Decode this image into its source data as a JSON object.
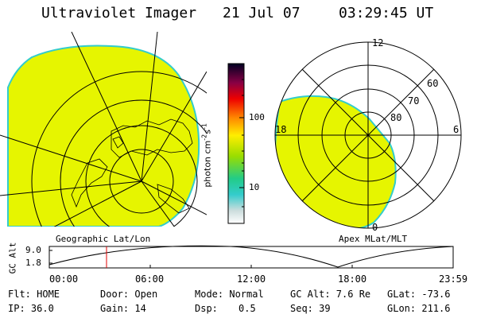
{
  "header": {
    "instrument": "Ultraviolet Imager",
    "date": "21 Jul 07",
    "time": "03:29:45 UT"
  },
  "colorbar": {
    "unit_label": "photon cm",
    "unit_exp1": "-2",
    "unit_mid": "s",
    "unit_exp2": "-1",
    "ticks": [
      "100",
      "10"
    ]
  },
  "left_panel": {
    "caption": "Geographic Lat/Lon"
  },
  "right_panel": {
    "caption": "Apex MLat/MLT",
    "mlt_labels": [
      "12",
      "18",
      "6",
      "0"
    ],
    "lat_labels": [
      "60",
      "70",
      "80"
    ]
  },
  "timeline": {
    "ylabel": "GC Alt",
    "yticks": [
      "9.0",
      "1.8"
    ],
    "xticks": [
      "00:00",
      "06:00",
      "12:00",
      "18:00",
      "23:59"
    ]
  },
  "status": {
    "flt": "Flt: HOME",
    "door": "Door: Open",
    "mode": "Mode: Normal",
    "gc_alt": "GC Alt: 7.6 Re",
    "glat": "GLat: -73.6",
    "ip": "IP: 36.0",
    "gain": "Gain: 14",
    "dsp_label": "Dsp:",
    "dsp_value": "0.5",
    "seq": "Seq: 39",
    "glon": "GLon: 211.6"
  },
  "colors": {
    "aurora_fill": "#e6f500",
    "aurora_edge": "#33cccc",
    "time_marker": "#e00000"
  }
}
